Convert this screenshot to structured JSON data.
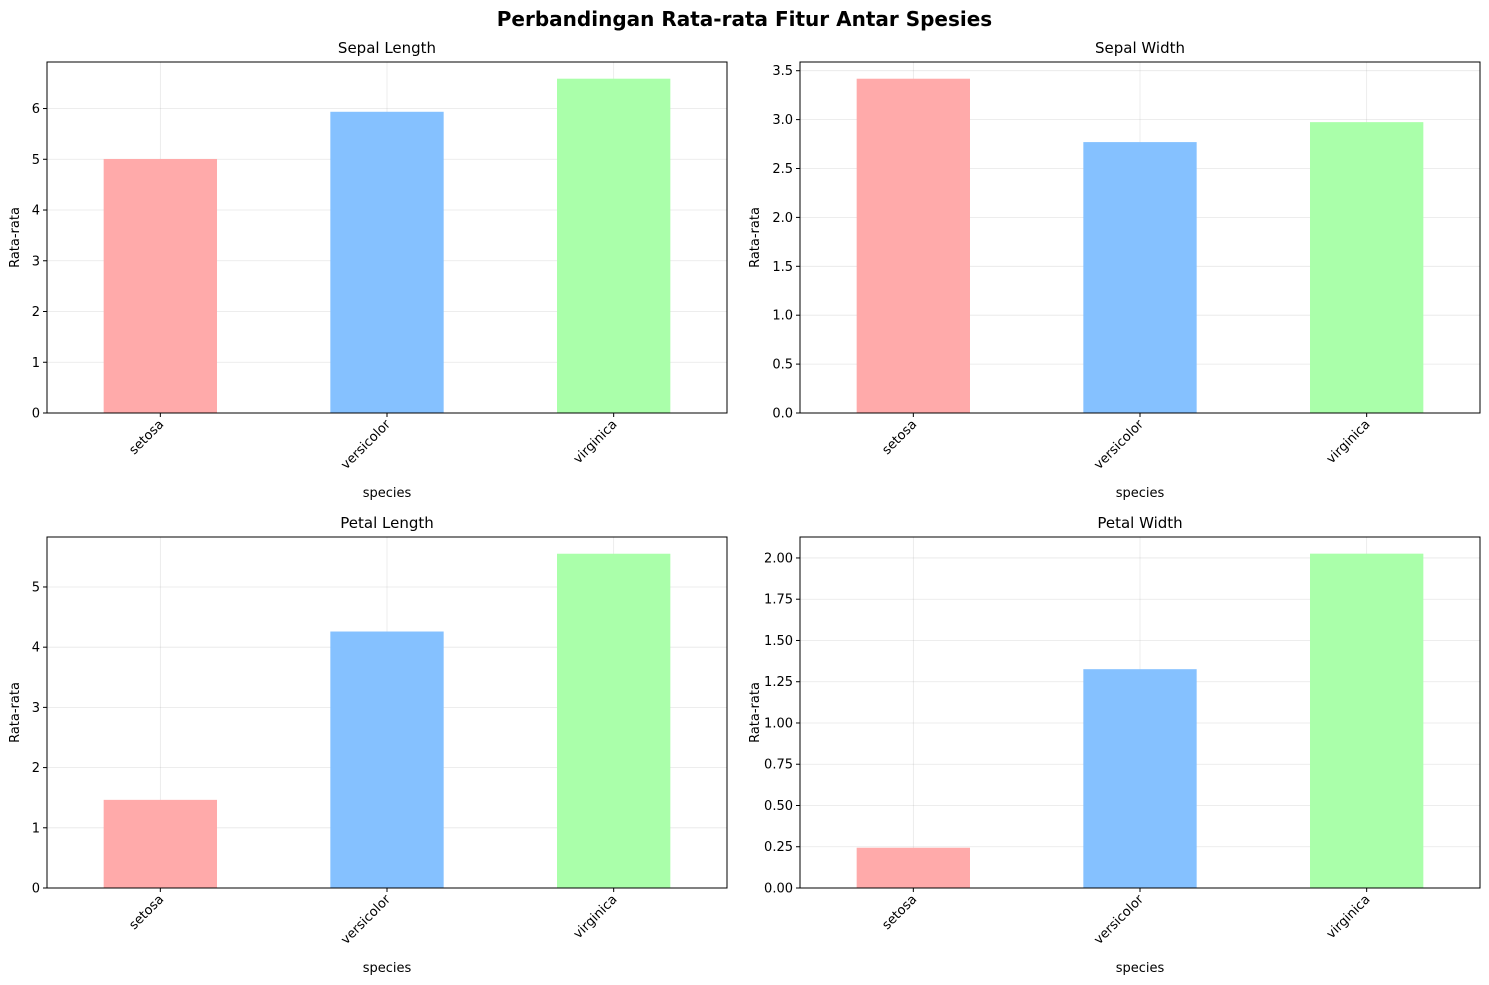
{
  "figure": {
    "title": "Perbandingan Rata-rata Fitur Antar Spesies"
  },
  "chart_data": [
    {
      "type": "bar",
      "title": "Sepal Length",
      "xlabel": "species",
      "ylabel": "Rata-rata",
      "categories": [
        "setosa",
        "versicolor",
        "virginica"
      ],
      "values": [
        5.006,
        5.936,
        6.588
      ],
      "colors": [
        "#ffaaaa",
        "#85c1ff",
        "#aaffaa"
      ],
      "ylim": [
        0,
        6.917
      ],
      "yticks": [
        0,
        1,
        2,
        3,
        4,
        5,
        6
      ],
      "ytick_labels": [
        "0",
        "1",
        "2",
        "3",
        "4",
        "5",
        "6"
      ],
      "grid": true
    },
    {
      "type": "bar",
      "title": "Sepal Width",
      "xlabel": "species",
      "ylabel": "Rata-rata",
      "categories": [
        "setosa",
        "versicolor",
        "virginica"
      ],
      "values": [
        3.418,
        2.77,
        2.974
      ],
      "colors": [
        "#ffaaaa",
        "#85c1ff",
        "#aaffaa"
      ],
      "ylim": [
        0,
        3.589
      ],
      "yticks": [
        0,
        0.5,
        1.0,
        1.5,
        2.0,
        2.5,
        3.0,
        3.5
      ],
      "ytick_labels": [
        "0.0",
        "0.5",
        "1.0",
        "1.5",
        "2.0",
        "2.5",
        "3.0",
        "3.5"
      ],
      "grid": true
    },
    {
      "type": "bar",
      "title": "Petal Length",
      "xlabel": "species",
      "ylabel": "Rata-rata",
      "categories": [
        "setosa",
        "versicolor",
        "virginica"
      ],
      "values": [
        1.464,
        4.26,
        5.552
      ],
      "colors": [
        "#ffaaaa",
        "#85c1ff",
        "#aaffaa"
      ],
      "ylim": [
        0,
        5.83
      ],
      "yticks": [
        0,
        1,
        2,
        3,
        4,
        5
      ],
      "ytick_labels": [
        "0",
        "1",
        "2",
        "3",
        "4",
        "5"
      ],
      "grid": true
    },
    {
      "type": "bar",
      "title": "Petal Width",
      "xlabel": "species",
      "ylabel": "Rata-rata",
      "categories": [
        "setosa",
        "versicolor",
        "virginica"
      ],
      "values": [
        0.244,
        1.326,
        2.026
      ],
      "colors": [
        "#ffaaaa",
        "#85c1ff",
        "#aaffaa"
      ],
      "ylim": [
        0,
        2.127
      ],
      "yticks": [
        0,
        0.25,
        0.5,
        0.75,
        1.0,
        1.25,
        1.5,
        1.75,
        2.0
      ],
      "ytick_labels": [
        "0.00",
        "0.25",
        "0.50",
        "0.75",
        "1.00",
        "1.25",
        "1.50",
        "1.75",
        "2.00"
      ],
      "grid": true
    }
  ]
}
